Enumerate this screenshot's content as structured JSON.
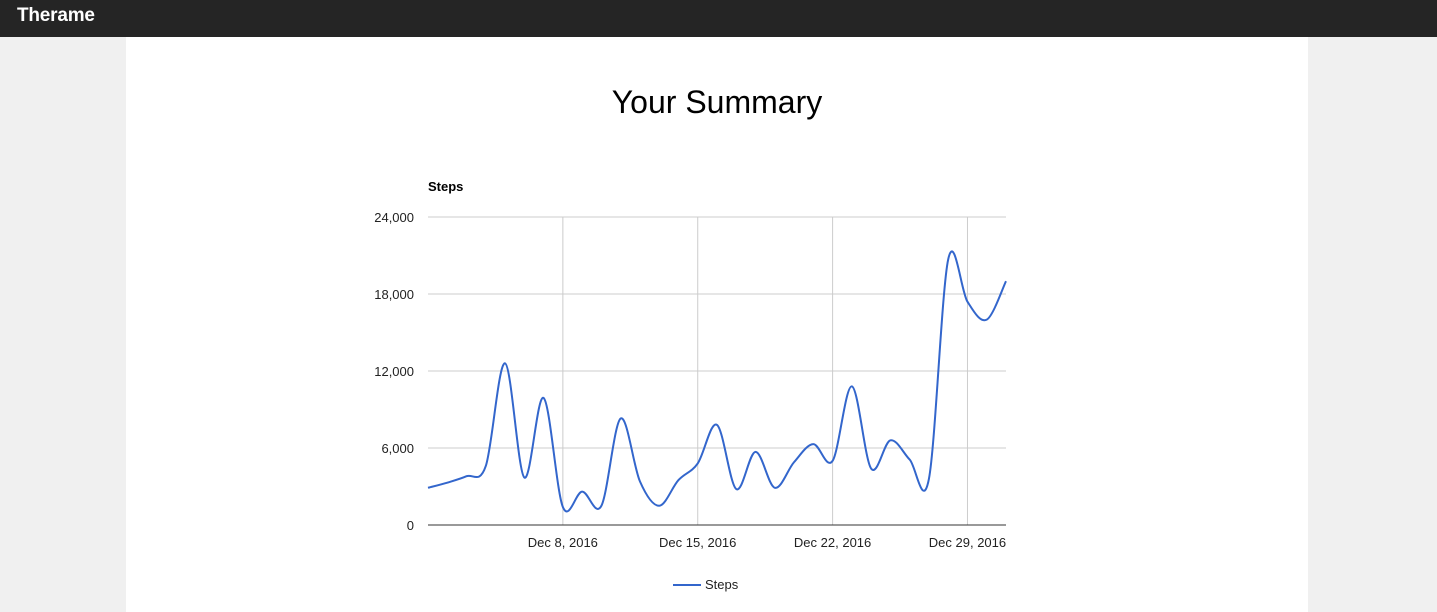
{
  "app": {
    "brand": "Therame"
  },
  "page": {
    "title": "Your Summary"
  },
  "colors": {
    "navbar": "#252525",
    "page_background": "#f0f0f0",
    "card_background": "#ffffff",
    "series_line": "#3366cc",
    "gridline": "#cccccc",
    "baseline": "#333333"
  },
  "chart_data": {
    "type": "line",
    "title": "",
    "xlabel": "",
    "ylabel": "Steps",
    "x_start": "Dec 1, 2016",
    "x_end": "Dec 31, 2016",
    "ylim": [
      0,
      24000
    ],
    "yticks": [
      0,
      6000,
      12000,
      18000,
      24000
    ],
    "ytick_labels": [
      "0",
      "6,000",
      "12,000",
      "18,000",
      "24,000"
    ],
    "xticks": [
      "Dec 8, 2016",
      "Dec 15, 2016",
      "Dec 22, 2016",
      "Dec 29, 2016"
    ],
    "grid": true,
    "legend": {
      "position": "bottom",
      "entries": [
        "Steps"
      ]
    },
    "series": [
      {
        "name": "Steps",
        "color": "#3366cc",
        "x": [
          "Dec 1, 2016",
          "Dec 2, 2016",
          "Dec 3, 2016",
          "Dec 4, 2016",
          "Dec 5, 2016",
          "Dec 6, 2016",
          "Dec 7, 2016",
          "Dec 8, 2016",
          "Dec 9, 2016",
          "Dec 10, 2016",
          "Dec 11, 2016",
          "Dec 12, 2016",
          "Dec 13, 2016",
          "Dec 14, 2016",
          "Dec 15, 2016",
          "Dec 16, 2016",
          "Dec 17, 2016",
          "Dec 18, 2016",
          "Dec 19, 2016",
          "Dec 20, 2016",
          "Dec 21, 2016",
          "Dec 22, 2016",
          "Dec 23, 2016",
          "Dec 24, 2016",
          "Dec 25, 2016",
          "Dec 26, 2016",
          "Dec 27, 2016",
          "Dec 28, 2016",
          "Dec 29, 2016",
          "Dec 30, 2016",
          "Dec 31, 2016"
        ],
        "values": [
          2900,
          3300,
          3800,
          4600,
          12600,
          3700,
          9900,
          1400,
          2600,
          1500,
          8300,
          3400,
          1500,
          3500,
          4800,
          7800,
          2800,
          5700,
          2900,
          4900,
          6300,
          5000,
          10800,
          4400,
          6600,
          5100,
          3600,
          20700,
          17400,
          16000,
          19000
        ]
      }
    ]
  }
}
